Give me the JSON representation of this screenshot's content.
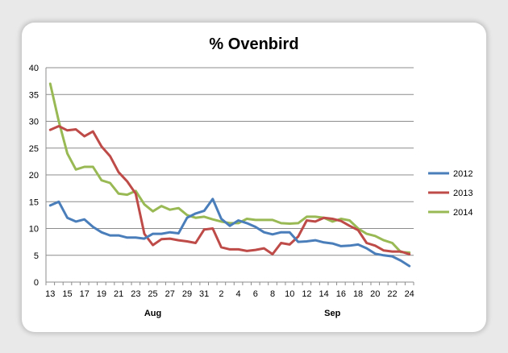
{
  "chart_data": {
    "type": "line",
    "title": "% Ovenbird",
    "xlabel": "",
    "ylabel": "",
    "ylim": [
      0,
      40
    ],
    "yticks": [
      0,
      5,
      10,
      15,
      20,
      25,
      30,
      35,
      40
    ],
    "grid": "horizontal",
    "legend_position": "right",
    "x_tick_labels": [
      "13",
      "15",
      "17",
      "19",
      "21",
      "23",
      "25",
      "27",
      "29",
      "31",
      "2",
      "4",
      "6",
      "8",
      "10",
      "12",
      "14",
      "16",
      "18",
      "20",
      "22",
      "24"
    ],
    "month_labels": [
      {
        "label": "Aug",
        "at_index": 12
      },
      {
        "label": "Sep",
        "at_index": 33
      }
    ],
    "point_count": 43,
    "series": [
      {
        "name": "2012",
        "color": "#4a7ebb",
        "values": [
          14.3,
          15.0,
          12.0,
          11.3,
          11.7,
          10.3,
          9.3,
          8.7,
          8.7,
          8.3,
          8.3,
          8.1,
          9.0,
          9.0,
          9.3,
          9.1,
          12.0,
          12.8,
          13.3,
          15.5,
          11.8,
          10.5,
          11.5,
          11.0,
          10.3,
          9.3,
          8.9,
          9.3,
          9.3,
          7.5,
          7.6,
          7.8,
          7.4,
          7.2,
          6.7,
          6.8,
          7.0,
          6.3,
          5.3,
          5.0,
          4.8,
          4.0,
          3.0
        ]
      },
      {
        "name": "2013",
        "color": "#be4b48",
        "values": [
          28.4,
          29.1,
          28.3,
          28.5,
          27.2,
          28.1,
          25.3,
          23.5,
          20.5,
          18.8,
          16.5,
          9.0,
          6.9,
          8.0,
          8.1,
          7.8,
          7.6,
          7.3,
          9.8,
          10.0,
          6.5,
          6.1,
          6.1,
          5.8,
          6.0,
          6.3,
          5.2,
          7.3,
          7.0,
          8.5,
          11.5,
          11.3,
          12.0,
          11.8,
          11.4,
          10.5,
          9.7,
          7.3,
          6.8,
          5.9,
          5.7,
          5.7,
          5.2
        ]
      },
      {
        "name": "2014",
        "color": "#98b954",
        "values": [
          37.0,
          30.0,
          24.0,
          21.0,
          21.5,
          21.5,
          19.0,
          18.5,
          16.5,
          16.3,
          17.0,
          14.5,
          13.2,
          14.2,
          13.5,
          13.8,
          12.5,
          12.0,
          12.2,
          11.7,
          11.3,
          11.0,
          11.0,
          11.8,
          11.6,
          11.6,
          11.6,
          11.0,
          10.9,
          11.0,
          12.2,
          12.2,
          12.0,
          11.3,
          11.8,
          11.5,
          10.0,
          9.0,
          8.6,
          7.8,
          7.3,
          5.6,
          5.5
        ]
      }
    ]
  }
}
